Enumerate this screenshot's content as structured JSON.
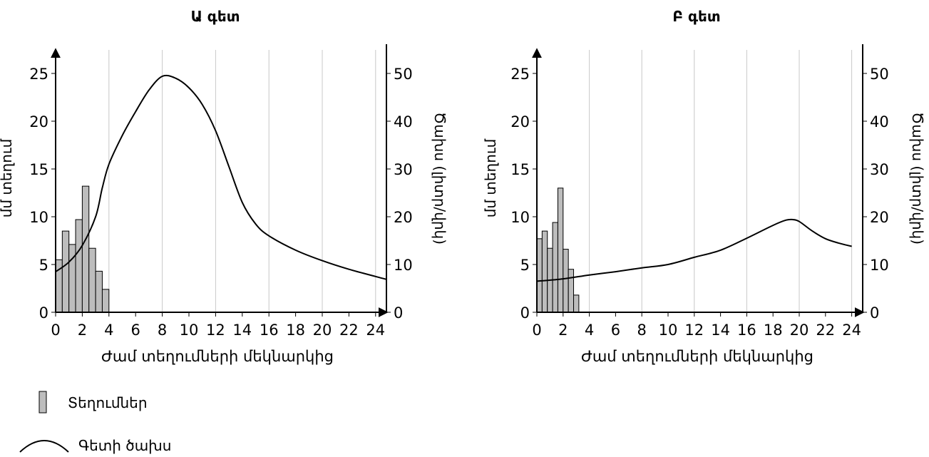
{
  "chart_data": [
    {
      "type": "bar",
      "title": "Ա գետ",
      "xlabel": "Ժամ տեղումների մեկնարկից",
      "ylabel": "մմ տեղում",
      "y2label": "Ծախս (լիտր/վրկ)",
      "xlim": [
        0,
        24.8
      ],
      "ylim": [
        0,
        27
      ],
      "y2lim": [
        0,
        54
      ],
      "xticks": [
        "0",
        "2",
        "4",
        "6",
        "8",
        "10",
        "12",
        "14",
        "16",
        "18",
        "20",
        "22",
        "24"
      ],
      "yticks": [
        "0",
        "5",
        "10",
        "15",
        "20",
        "25"
      ],
      "y2ticks": [
        "0",
        "10",
        "20",
        "30",
        "40",
        "50"
      ],
      "vgrid": [
        4,
        8,
        12,
        16,
        20,
        24
      ],
      "bars": {
        "name": "Տեղումներ",
        "width": 0.5,
        "x": [
          0.25,
          0.75,
          1.25,
          1.75,
          2.25,
          2.75,
          3.25,
          3.75
        ],
        "values": [
          5.5,
          8.5,
          7.1,
          9.7,
          13.2,
          6.7,
          4.3,
          2.4
        ]
      },
      "line": {
        "name": "Գետի ծախս",
        "axis": "right",
        "x": [
          0,
          1,
          2,
          3,
          3.5,
          4,
          5,
          6,
          7,
          8,
          9,
          10,
          11,
          12,
          13,
          14,
          15,
          16,
          18,
          20,
          22,
          24.8
        ],
        "y": [
          8.5,
          10.5,
          14,
          20,
          26,
          31,
          37,
          42,
          46.5,
          49.4,
          49,
          47,
          43.5,
          38,
          30.5,
          23,
          18.5,
          16,
          13,
          10.8,
          9,
          6.9
        ]
      }
    },
    {
      "type": "bar",
      "title": "Բ գետ",
      "xlabel": "Ժամ տեղումների մեկնարկից",
      "ylabel": "մմ տեղում",
      "y2label": "Ծախս (լիտր/վրկ)",
      "xlim": [
        0,
        24.8
      ],
      "ylim": [
        0,
        27
      ],
      "y2lim": [
        0,
        54
      ],
      "xticks": [
        "0",
        "2",
        "4",
        "6",
        "8",
        "10",
        "12",
        "14",
        "16",
        "18",
        "20",
        "22",
        "24"
      ],
      "yticks": [
        "0",
        "5",
        "10",
        "15",
        "20",
        "25"
      ],
      "y2ticks": [
        "0",
        "10",
        "20",
        "30",
        "40",
        "50"
      ],
      "vgrid": [
        4,
        8,
        12,
        16,
        20,
        24
      ],
      "bars": {
        "name": "Տեղումներ",
        "width": 0.4,
        "x": [
          0.2,
          0.6,
          1.0,
          1.4,
          1.8,
          2.2,
          2.6,
          3.0,
          3.4
        ],
        "values": [
          7.7,
          8.5,
          6.7,
          9.4,
          13.0,
          6.6,
          4.5,
          1.8,
          0
        ]
      },
      "line": {
        "name": "Գետի ծախս",
        "axis": "right",
        "x": [
          0,
          2,
          4,
          6,
          8,
          10,
          12,
          14,
          16,
          18,
          19,
          19.5,
          20,
          21,
          22,
          23,
          24
        ],
        "y": [
          6.5,
          7.0,
          7.8,
          8.5,
          9.3,
          10.0,
          11.5,
          13.0,
          15.5,
          18.2,
          19.3,
          19.4,
          19.0,
          17.0,
          15.4,
          14.5,
          13.8
        ]
      }
    }
  ],
  "legend": {
    "bars_label": "Տեղումներ",
    "line_label": "Գետի ծախս"
  }
}
